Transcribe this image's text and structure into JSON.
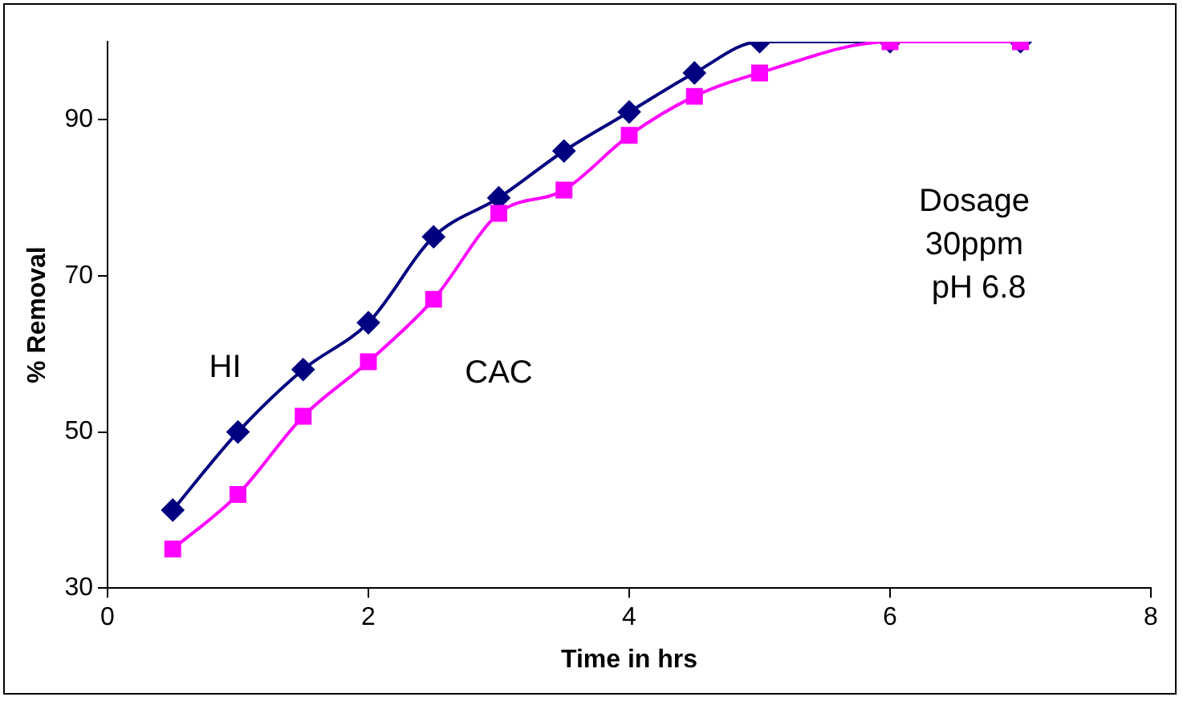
{
  "chart_data": {
    "type": "line",
    "xlabel": "Time in hrs",
    "ylabel": "% Removal",
    "x": [
      0.5,
      1,
      1.5,
      2,
      2.5,
      3,
      3.5,
      4,
      4.5,
      5,
      6,
      7
    ],
    "series": [
      {
        "name": "HI",
        "color": "#000080",
        "marker": "diamond",
        "values": [
          40,
          50,
          58,
          64,
          75,
          80,
          86,
          91,
          96,
          100,
          100,
          100
        ]
      },
      {
        "name": "CAC",
        "color": "#ff00ff",
        "marker": "square",
        "values": [
          35,
          42,
          52,
          59,
          67,
          78,
          81,
          88,
          93,
          96,
          100,
          100
        ]
      }
    ],
    "xlim": [
      0,
      8
    ],
    "xticks": [
      0,
      2,
      4,
      6,
      8
    ],
    "ylim": [
      30,
      100
    ],
    "yticks": [
      30,
      50,
      70,
      90
    ],
    "grid": false,
    "legend": false,
    "line_style": "solid",
    "annotations": [
      "Dosage\n30ppm\n pH 6.8"
    ]
  }
}
